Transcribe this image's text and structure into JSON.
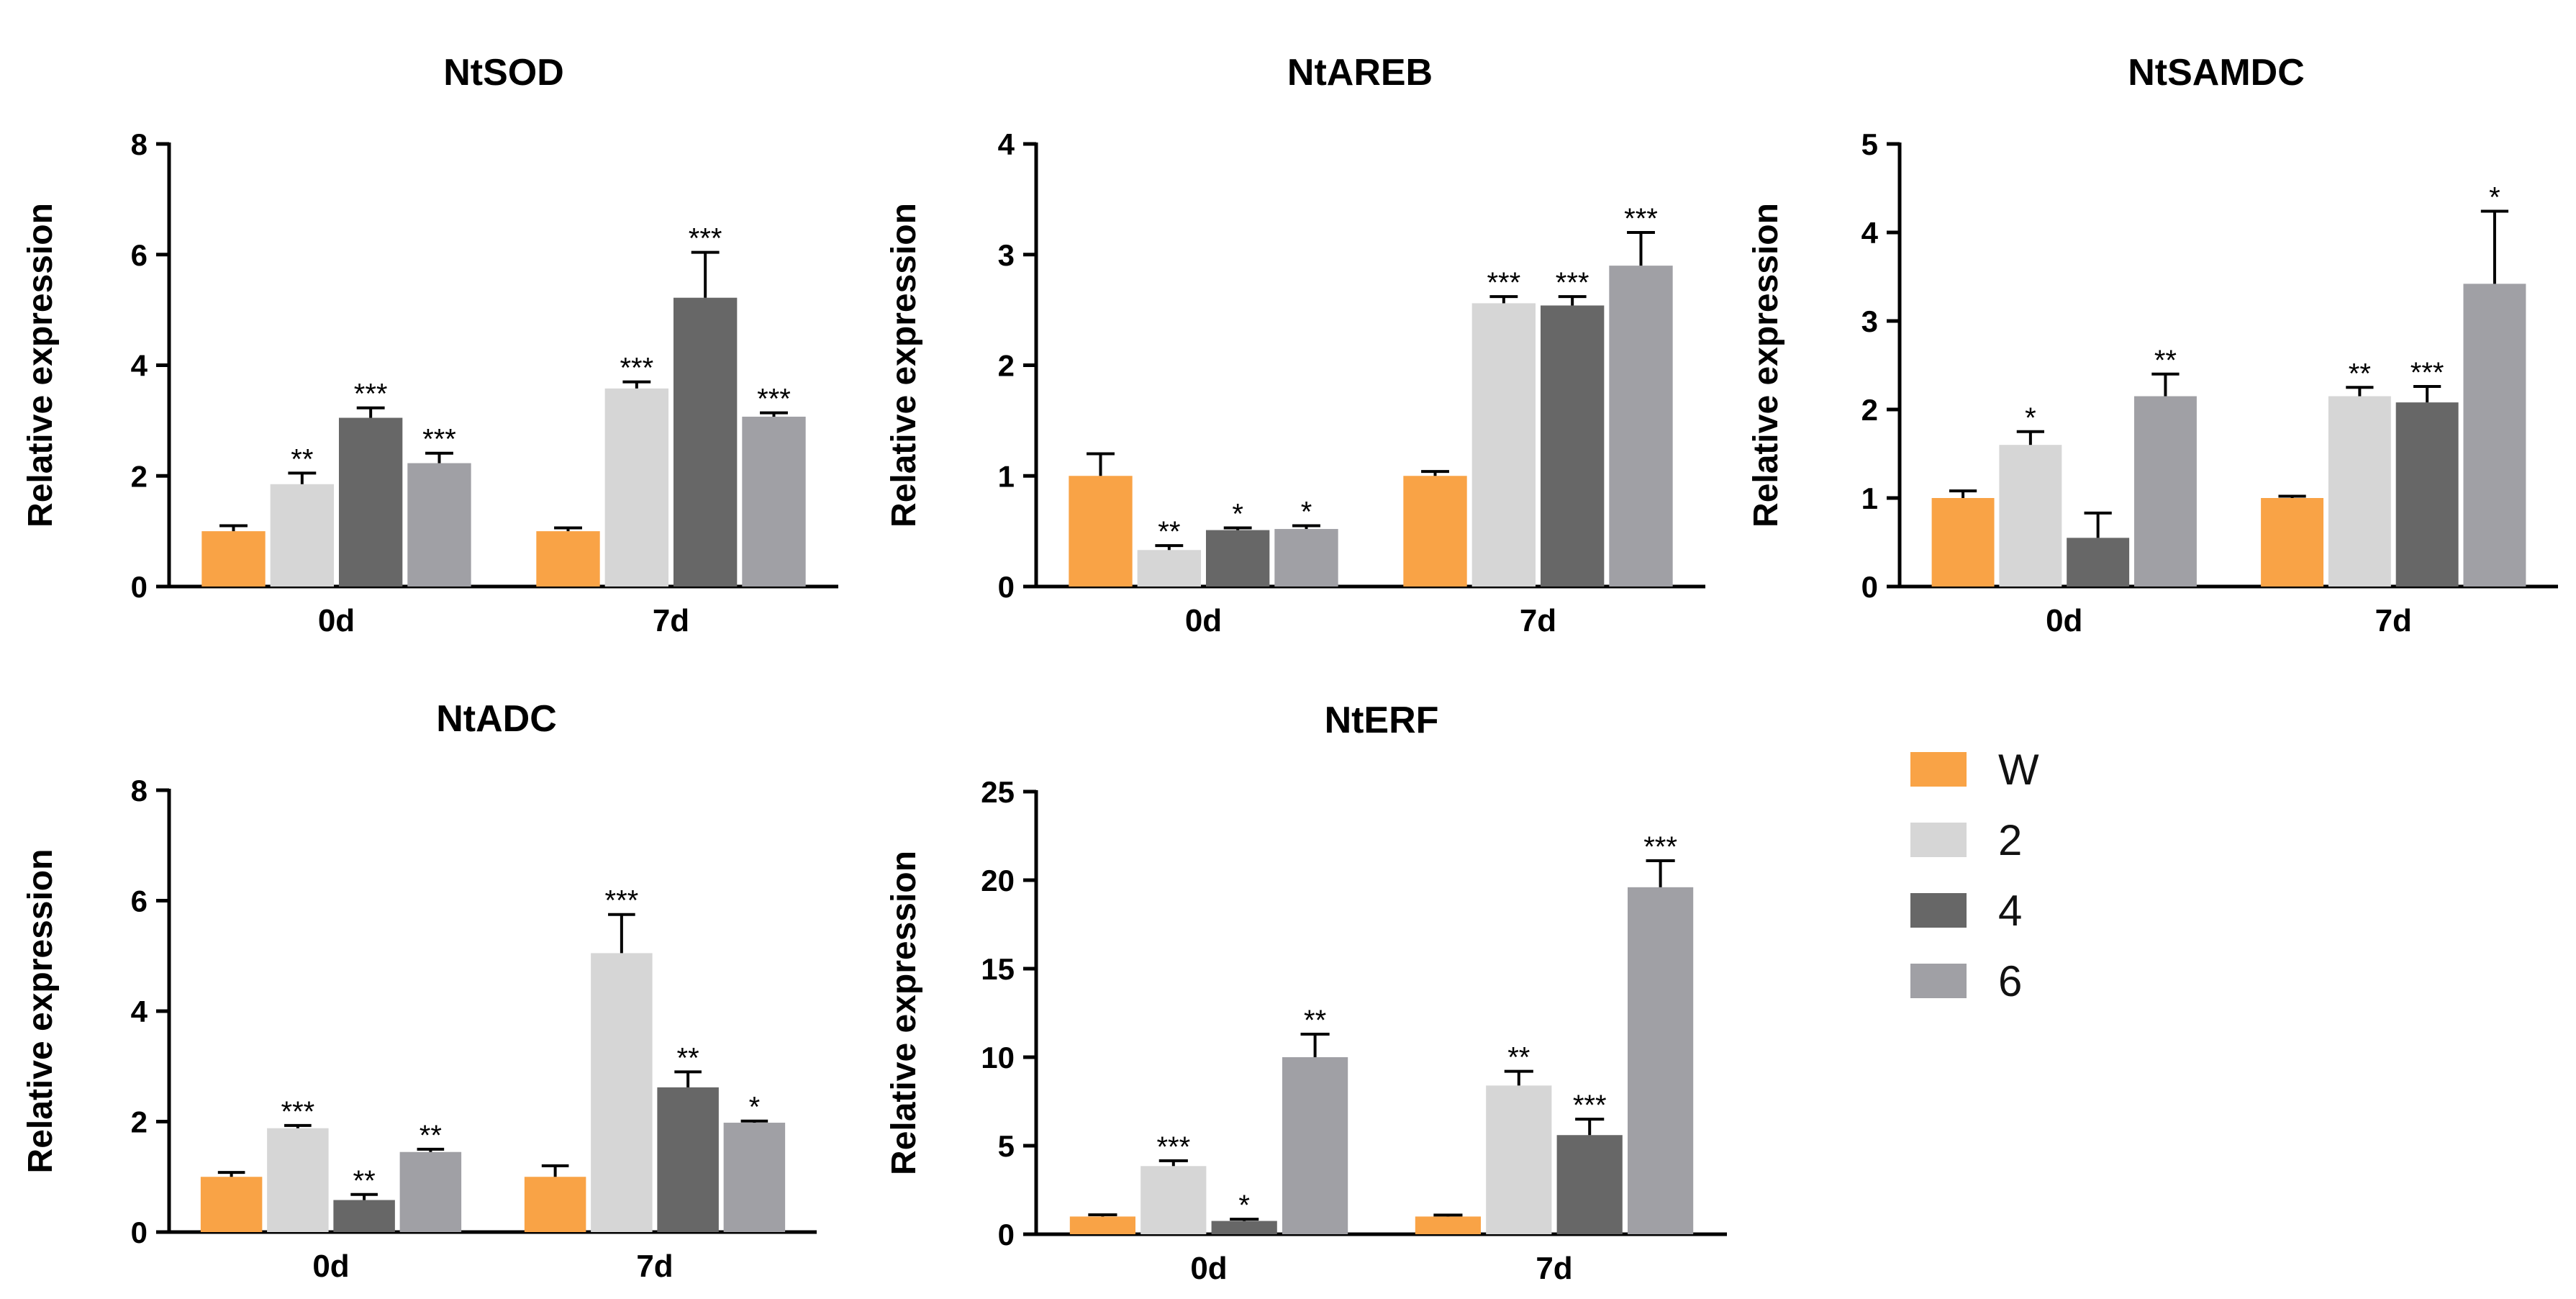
{
  "colors": {
    "W": "#F9A346",
    "2": "#D6D6D6",
    "4": "#676767",
    "6": "#A0A0A5",
    "axis": "#000000",
    "text": "#000000"
  },
  "legend": {
    "items": [
      {
        "key": "W",
        "label": "W"
      },
      {
        "key": "2",
        "label": "2"
      },
      {
        "key": "4",
        "label": "4"
      },
      {
        "key": "6",
        "label": "6"
      }
    ]
  },
  "chart_data": [
    {
      "type": "bar",
      "title": "NtSOD",
      "ylabel": "Relative expression",
      "xlabel": "",
      "ylim": [
        0,
        8
      ],
      "yticks": [
        0,
        2,
        4,
        6,
        8
      ],
      "categories": [
        "0d",
        "7d"
      ],
      "series": [
        {
          "name": "W",
          "values": [
            1.0,
            1.0
          ],
          "errors": [
            0.1,
            0.06
          ],
          "sig": [
            "",
            ""
          ]
        },
        {
          "name": "2",
          "values": [
            1.85,
            3.58
          ],
          "errors": [
            0.2,
            0.12
          ],
          "sig": [
            "**",
            "***"
          ]
        },
        {
          "name": "4",
          "values": [
            3.05,
            5.22
          ],
          "errors": [
            0.18,
            0.82
          ],
          "sig": [
            "***",
            "***"
          ]
        },
        {
          "name": "6",
          "values": [
            2.23,
            3.07
          ],
          "errors": [
            0.18,
            0.07
          ],
          "sig": [
            "***",
            "***"
          ]
        }
      ]
    },
    {
      "type": "bar",
      "title": "NtAREB",
      "ylabel": "Relative expression",
      "xlabel": "",
      "ylim": [
        0,
        4
      ],
      "yticks": [
        0,
        1,
        2,
        3,
        4
      ],
      "categories": [
        "0d",
        "7d"
      ],
      "series": [
        {
          "name": "W",
          "values": [
            1.0,
            1.0
          ],
          "errors": [
            0.2,
            0.04
          ],
          "sig": [
            "",
            ""
          ]
        },
        {
          "name": "2",
          "values": [
            0.33,
            2.56
          ],
          "errors": [
            0.04,
            0.06
          ],
          "sig": [
            "**",
            "***"
          ]
        },
        {
          "name": "4",
          "values": [
            0.51,
            2.54
          ],
          "errors": [
            0.02,
            0.08
          ],
          "sig": [
            "*",
            "***"
          ]
        },
        {
          "name": "6",
          "values": [
            0.52,
            2.9
          ],
          "errors": [
            0.03,
            0.3
          ],
          "sig": [
            "*",
            "***"
          ]
        }
      ]
    },
    {
      "type": "bar",
      "title": "NtSAMDC",
      "ylabel": "Relative expression",
      "xlabel": "",
      "ylim": [
        0,
        5
      ],
      "yticks": [
        0,
        1,
        2,
        3,
        4,
        5
      ],
      "categories": [
        "0d",
        "7d"
      ],
      "series": [
        {
          "name": "W",
          "values": [
            1.0,
            1.0
          ],
          "errors": [
            0.08,
            0.02
          ],
          "sig": [
            "",
            ""
          ]
        },
        {
          "name": "2",
          "values": [
            1.6,
            2.15
          ],
          "errors": [
            0.15,
            0.1
          ],
          "sig": [
            "*",
            "**"
          ]
        },
        {
          "name": "4",
          "values": [
            0.55,
            2.08
          ],
          "errors": [
            0.28,
            0.18
          ],
          "sig": [
            "",
            "***"
          ]
        },
        {
          "name": "6",
          "values": [
            2.15,
            3.42
          ],
          "errors": [
            0.25,
            0.82
          ],
          "sig": [
            "**",
            "*"
          ]
        }
      ]
    },
    {
      "type": "bar",
      "title": "NtADC",
      "ylabel": "Relative expression",
      "xlabel": "",
      "ylim": [
        0,
        8
      ],
      "yticks": [
        0,
        2,
        4,
        6,
        8
      ],
      "categories": [
        "0d",
        "7d"
      ],
      "series": [
        {
          "name": "W",
          "values": [
            1.0,
            1.0
          ],
          "errors": [
            0.08,
            0.2
          ],
          "sig": [
            "",
            ""
          ]
        },
        {
          "name": "2",
          "values": [
            1.88,
            5.05
          ],
          "errors": [
            0.05,
            0.7
          ],
          "sig": [
            "***",
            "***"
          ]
        },
        {
          "name": "4",
          "values": [
            0.58,
            2.62
          ],
          "errors": [
            0.1,
            0.28
          ],
          "sig": [
            "**",
            "**"
          ]
        },
        {
          "name": "6",
          "values": [
            1.45,
            1.98
          ],
          "errors": [
            0.05,
            0.03
          ],
          "sig": [
            "**",
            "*"
          ]
        }
      ]
    },
    {
      "type": "bar",
      "title": "NtERF",
      "ylabel": "Relative expression",
      "xlabel": "",
      "ylim": [
        0,
        25
      ],
      "yticks": [
        0,
        5,
        10,
        15,
        20,
        25
      ],
      "categories": [
        "0d",
        "7d"
      ],
      "series": [
        {
          "name": "W",
          "values": [
            1.0,
            1.0
          ],
          "errors": [
            0.1,
            0.08
          ],
          "sig": [
            "",
            ""
          ]
        },
        {
          "name": "2",
          "values": [
            3.85,
            8.4
          ],
          "errors": [
            0.3,
            0.8
          ],
          "sig": [
            "***",
            "**"
          ]
        },
        {
          "name": "4",
          "values": [
            0.75,
            5.6
          ],
          "errors": [
            0.1,
            0.9
          ],
          "sig": [
            "*",
            "***"
          ]
        },
        {
          "name": "6",
          "values": [
            10.0,
            19.6
          ],
          "errors": [
            1.3,
            1.5
          ],
          "sig": [
            "**",
            "***"
          ]
        }
      ]
    }
  ]
}
